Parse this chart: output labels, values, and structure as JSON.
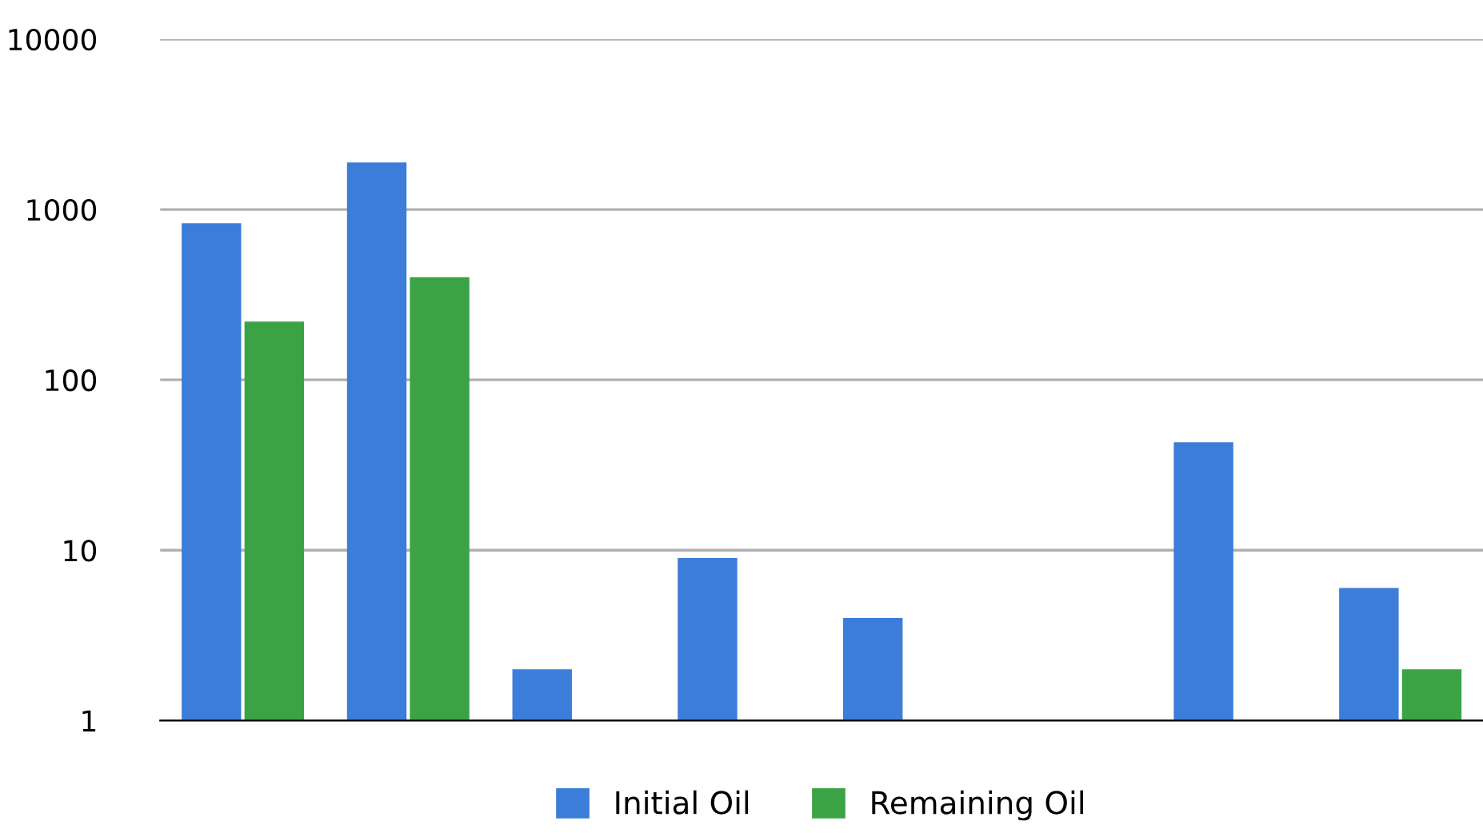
{
  "chart_data": {
    "type": "bar",
    "categories": [
      null,
      null,
      null,
      null,
      null,
      null,
      null,
      null
    ],
    "series": [
      {
        "name": "Initial Oil",
        "color": "#3c7dd9",
        "values": [
          830,
          1890,
          2,
          9,
          4,
          null,
          43,
          6
        ]
      },
      {
        "name": "Remaining Oil",
        "color": "#3ba345",
        "values": [
          220,
          400,
          null,
          null,
          null,
          null,
          null,
          2
        ]
      }
    ],
    "log": "y",
    "ylim": [
      1,
      10000
    ],
    "yticks": [
      1,
      10,
      100,
      1000,
      10000
    ],
    "grid": "y",
    "legend": "bottom"
  }
}
